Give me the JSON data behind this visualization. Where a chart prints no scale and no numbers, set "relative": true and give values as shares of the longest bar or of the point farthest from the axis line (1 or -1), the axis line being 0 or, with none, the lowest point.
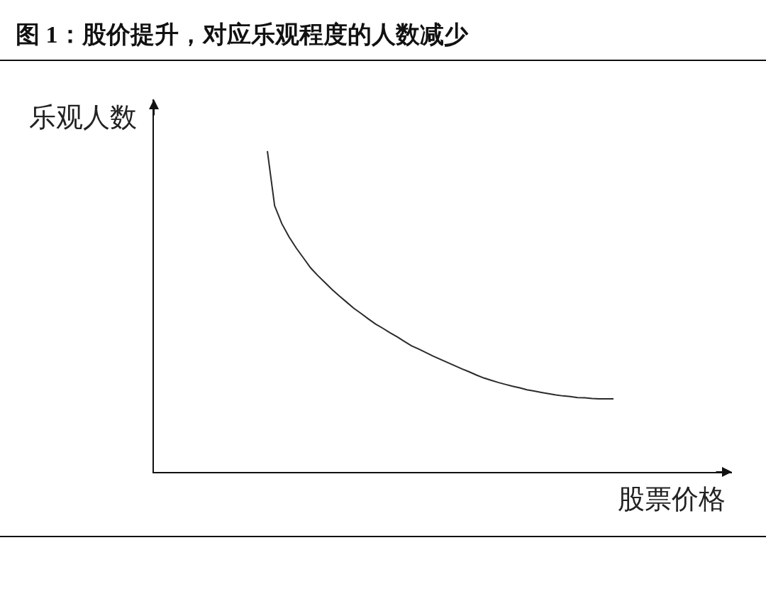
{
  "chart_data": {
    "type": "line",
    "title": "图 1：股价提升，对应乐观程度的人数减少",
    "xlabel": "股票价格",
    "ylabel": "乐观人数",
    "relative": true,
    "categories": [
      null,
      null,
      null,
      null,
      null,
      null,
      null,
      null,
      null,
      null,
      null,
      null,
      null,
      null,
      null,
      null,
      null,
      null,
      null,
      null,
      null,
      null,
      null,
      null,
      null,
      null,
      null,
      null,
      null,
      null,
      null,
      null,
      null,
      null,
      null,
      null,
      null,
      null,
      null,
      null,
      null,
      null,
      null,
      null,
      null,
      null,
      null,
      null,
      null
    ],
    "series": [
      {
        "color": "#2b2b2b",
        "values": [
          1.0,
          0.83,
          0.774,
          0.733,
          0.698,
          0.667,
          0.636,
          0.612,
          0.59,
          0.568,
          0.548,
          0.529,
          0.51,
          0.494,
          0.477,
          0.461,
          0.448,
          0.434,
          0.421,
          0.407,
          0.393,
          0.383,
          0.372,
          0.361,
          0.351,
          0.341,
          0.331,
          0.321,
          0.312,
          0.302,
          0.293,
          0.286,
          0.279,
          0.273,
          0.267,
          0.262,
          0.256,
          0.252,
          0.248,
          0.244,
          0.24,
          0.237,
          0.235,
          0.232,
          0.231,
          0.229,
          0.228,
          0.228,
          0.228
        ]
      }
    ]
  }
}
